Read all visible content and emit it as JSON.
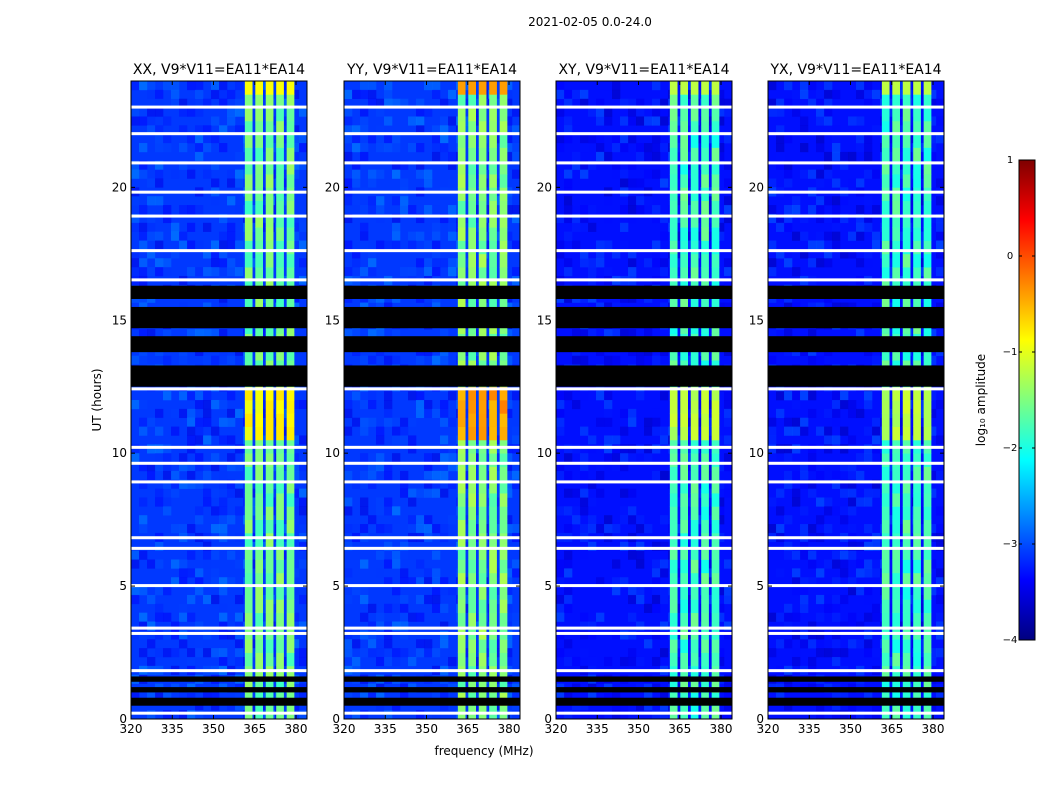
{
  "figure": {
    "suptitle": "2021-02-05 0.0-24.0",
    "ylabel": "UT (hours)",
    "xlabel": "frequency (MHz)"
  },
  "colorbar": {
    "label": "log₁₀ amplitude",
    "range": [
      -4,
      1
    ],
    "ticks": [
      "1",
      "0",
      "−1",
      "−2",
      "−3",
      "−4"
    ],
    "tick_values": [
      1,
      0,
      -1,
      -2,
      -3,
      -4
    ],
    "colormap": "jet",
    "stops": [
      "#00007f",
      "#0000ff",
      "#007fff",
      "#00ffff",
      "#7fff7f",
      "#ffff00",
      "#ff7f00",
      "#ff0000",
      "#7f0000"
    ]
  },
  "chart_data": [
    {
      "type": "heatmap",
      "title": "XX, V9*V11=EA11*EA14",
      "xlabel": "",
      "ylabel": "UT (hours)",
      "xlim": [
        320,
        384
      ],
      "ylim": [
        0,
        24
      ],
      "xticks": [
        "320",
        "335",
        "350",
        "365",
        "380"
      ],
      "xtick_values": [
        320,
        335,
        350,
        365,
        380
      ],
      "yticks": [
        "0",
        "5",
        "10",
        "15",
        "20"
      ],
      "ytick_values": [
        0,
        5,
        10,
        15,
        20
      ],
      "background_log_amp": -3.1,
      "bright_band_mhz": [
        361,
        380
      ],
      "bright_band_log_amp": -1.6,
      "peak_log_amp": -0.9,
      "flagged_hours": [
        [
          0.5,
          0.8
        ],
        [
          1.0,
          1.2
        ],
        [
          1.4,
          1.6
        ],
        [
          12.5,
          13.3
        ],
        [
          13.8,
          14.4
        ],
        [
          14.7,
          15.5
        ],
        [
          15.8,
          16.3
        ]
      ]
    },
    {
      "type": "heatmap",
      "title": "YY, V9*V11=EA11*EA14",
      "xlabel": "frequency (MHz)",
      "ylabel": "",
      "xlim": [
        320,
        384
      ],
      "ylim": [
        0,
        24
      ],
      "xticks": [
        "320",
        "335",
        "350",
        "365",
        "380"
      ],
      "xtick_values": [
        320,
        335,
        350,
        365,
        380
      ],
      "yticks": [
        "0",
        "5",
        "10",
        "15",
        "20"
      ],
      "ytick_values": [
        0,
        5,
        10,
        15,
        20
      ],
      "background_log_amp": -3.1,
      "bright_band_mhz": [
        361,
        380
      ],
      "bright_band_log_amp": -1.5,
      "peak_log_amp": -0.4,
      "flagged_hours": [
        [
          0.5,
          0.8
        ],
        [
          1.0,
          1.2
        ],
        [
          1.4,
          1.6
        ],
        [
          12.5,
          13.3
        ],
        [
          13.8,
          14.4
        ],
        [
          14.7,
          15.5
        ],
        [
          15.8,
          16.3
        ]
      ]
    },
    {
      "type": "heatmap",
      "title": "XY, V9*V11=EA11*EA14",
      "xlabel": "",
      "ylabel": "",
      "xlim": [
        320,
        384
      ],
      "ylim": [
        0,
        24
      ],
      "xticks": [
        "320",
        "335",
        "350",
        "365",
        "380"
      ],
      "xtick_values": [
        320,
        335,
        350,
        365,
        380
      ],
      "yticks": [
        "0",
        "5",
        "10",
        "15",
        "20"
      ],
      "ytick_values": [
        0,
        5,
        10,
        15,
        20
      ],
      "background_log_amp": -3.3,
      "bright_band_mhz": [
        361,
        380
      ],
      "bright_band_log_amp": -1.8,
      "peak_log_amp": -1.2,
      "flagged_hours": [
        [
          0.5,
          0.8
        ],
        [
          1.0,
          1.2
        ],
        [
          1.4,
          1.6
        ],
        [
          12.5,
          13.3
        ],
        [
          13.8,
          14.4
        ],
        [
          14.7,
          15.5
        ],
        [
          15.8,
          16.3
        ]
      ]
    },
    {
      "type": "heatmap",
      "title": "YX, V9*V11=EA11*EA14",
      "xlabel": "",
      "ylabel": "",
      "xlim": [
        320,
        384
      ],
      "ylim": [
        0,
        24
      ],
      "xticks": [
        "320",
        "335",
        "350",
        "365",
        "380"
      ],
      "xtick_values": [
        320,
        335,
        350,
        365,
        380
      ],
      "yticks": [
        "0",
        "5",
        "10",
        "15",
        "20"
      ],
      "ytick_values": [
        0,
        5,
        10,
        15,
        20
      ],
      "background_log_amp": -3.3,
      "bright_band_mhz": [
        361,
        380
      ],
      "bright_band_log_amp": -1.8,
      "peak_log_amp": -1.2,
      "flagged_hours": [
        [
          0.5,
          0.8
        ],
        [
          1.0,
          1.2
        ],
        [
          1.4,
          1.6
        ],
        [
          12.5,
          13.3
        ],
        [
          13.8,
          14.4
        ],
        [
          14.7,
          15.5
        ],
        [
          15.8,
          16.3
        ]
      ]
    }
  ]
}
